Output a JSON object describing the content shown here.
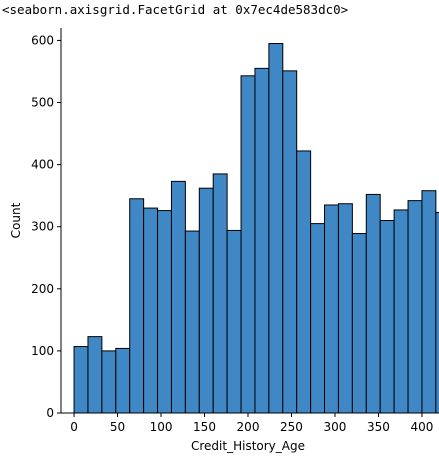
{
  "output_repr": "<seaborn.axisgrid.FacetGrid at 0x7ec4de583dc0>",
  "chart_data": {
    "type": "bar",
    "subtype": "histogram",
    "xlabel": "Credit_History_Age",
    "ylabel": "Count",
    "xlim": [
      -15,
      415
    ],
    "ylim": [
      0,
      620
    ],
    "xticks": [
      0,
      50,
      100,
      150,
      200,
      250,
      300,
      350,
      400
    ],
    "yticks": [
      0,
      100,
      200,
      300,
      400,
      500,
      600
    ],
    "bin_width": 16,
    "bin_start": 0,
    "values": [
      107,
      123,
      100,
      104,
      345,
      330,
      326,
      373,
      293,
      362,
      385,
      294,
      543,
      555,
      595,
      551,
      422,
      305,
      335,
      337,
      289,
      352,
      310,
      327,
      342,
      358,
      323
    ],
    "colors": {
      "bar_fill": "#3f88c5",
      "bar_edge": "#000000"
    },
    "grid": false,
    "spines": "left-bottom"
  }
}
